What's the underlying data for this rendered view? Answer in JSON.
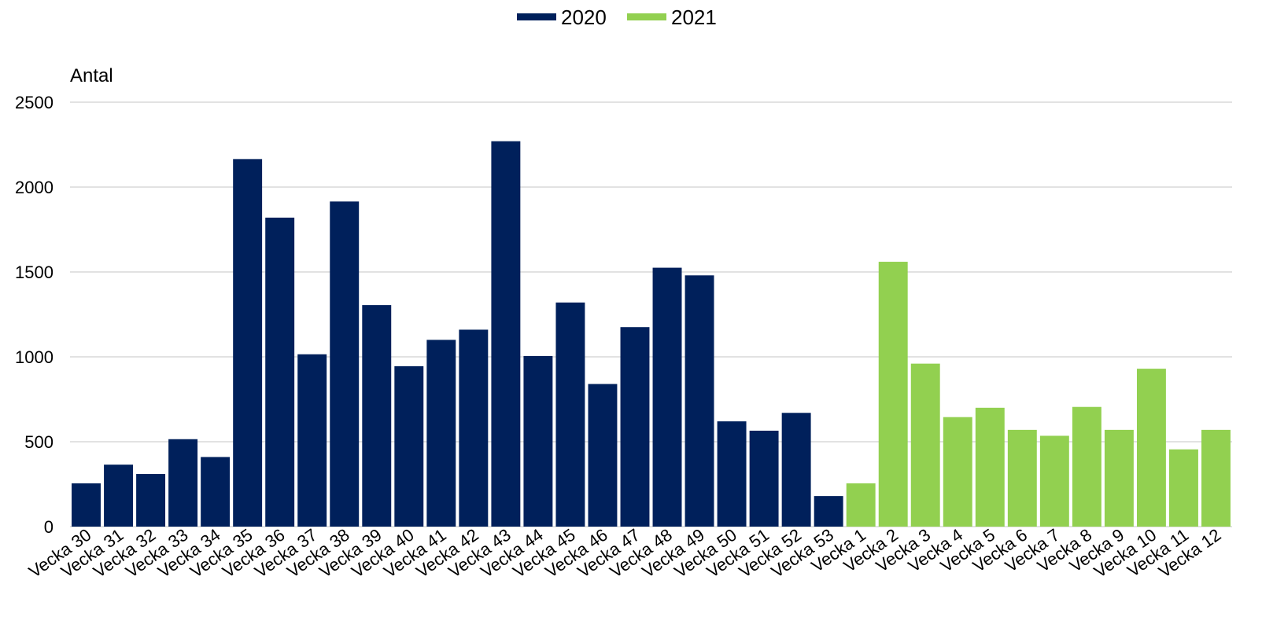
{
  "chart_data": {
    "type": "bar",
    "ylabel": "Antal",
    "ylim": [
      0,
      2500
    ],
    "yticks": [
      0,
      500,
      1000,
      1500,
      2000,
      2500
    ],
    "grid": true,
    "legend_position": "top-center",
    "categories": [
      "Vecka 30",
      "Vecka 31",
      "Vecka 32",
      "Vecka 33",
      "Vecka 34",
      "Vecka 35",
      "Vecka 36",
      "Vecka 37",
      "Vecka 38",
      "Vecka 39",
      "Vecka 40",
      "Vecka 41",
      "Vecka 42",
      "Vecka 43",
      "Vecka 44",
      "Vecka 45",
      "Vecka 46",
      "Vecka 47",
      "Vecka 48",
      "Vecka 49",
      "Vecka 50",
      "Vecka 51",
      "Vecka 52",
      "Vecka 53",
      "Vecka 1",
      "Vecka 2",
      "Vecka 3",
      "Vecka 4",
      "Vecka 5",
      "Vecka 6",
      "Vecka 7",
      "Vecka 8",
      "Vecka 9",
      "Vecka 10",
      "Vecka 11",
      "Vecka 12"
    ],
    "series": [
      {
        "name": "2020",
        "color": "#00205b",
        "values": [
          255,
          365,
          310,
          515,
          410,
          2165,
          1820,
          1015,
          1915,
          1305,
          945,
          1100,
          1160,
          2270,
          1005,
          1320,
          840,
          1175,
          1525,
          1480,
          620,
          565,
          670,
          180,
          null,
          null,
          null,
          null,
          null,
          null,
          null,
          null,
          null,
          null,
          null,
          null
        ]
      },
      {
        "name": "2021",
        "color": "#92d050",
        "values": [
          null,
          null,
          null,
          null,
          null,
          null,
          null,
          null,
          null,
          null,
          null,
          null,
          null,
          null,
          null,
          null,
          null,
          null,
          null,
          null,
          null,
          null,
          null,
          null,
          255,
          1560,
          960,
          645,
          700,
          570,
          535,
          705,
          570,
          930,
          455,
          570
        ]
      }
    ]
  }
}
